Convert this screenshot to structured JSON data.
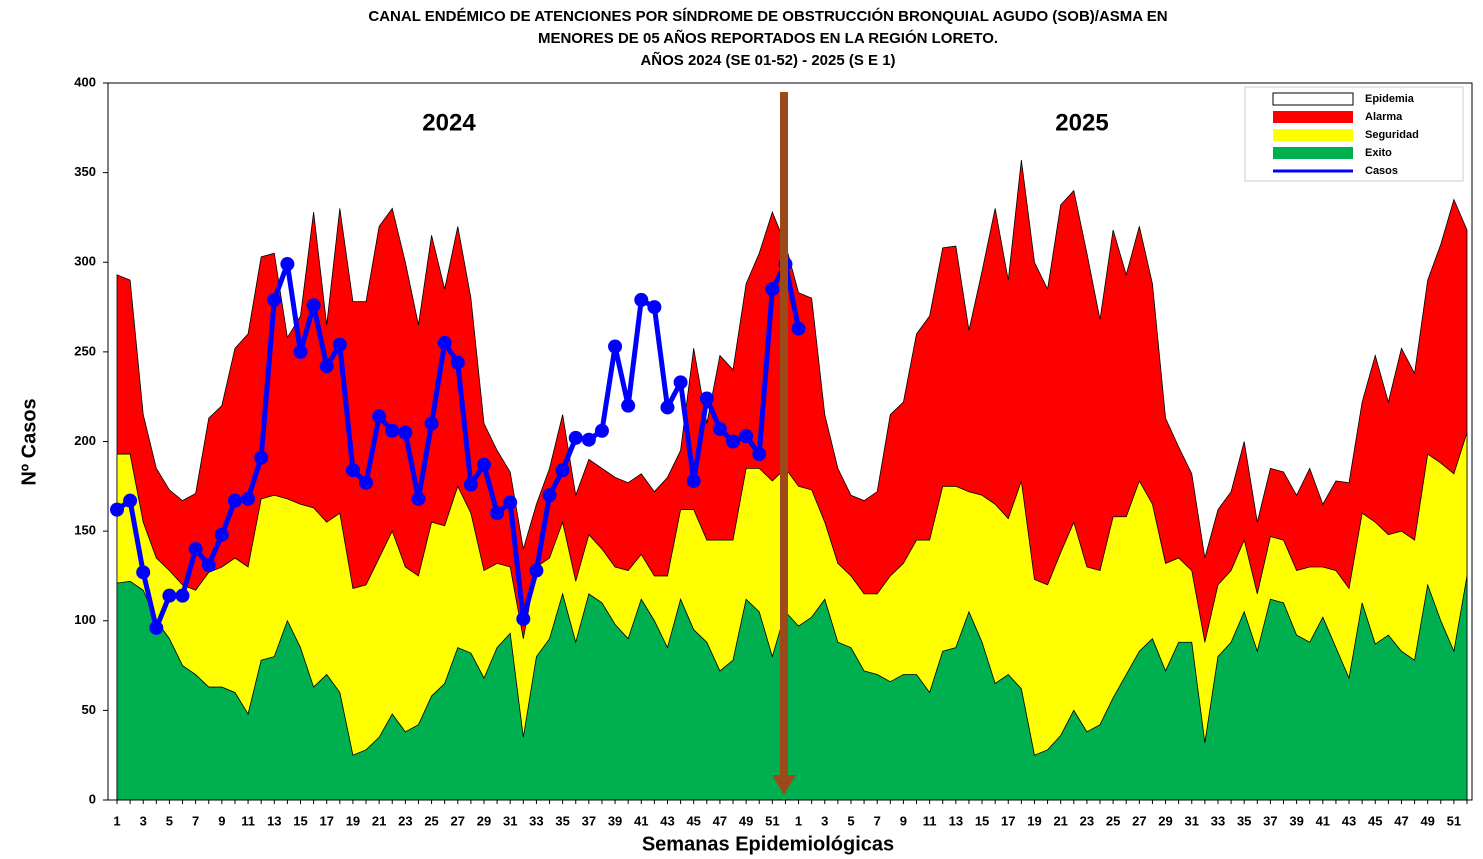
{
  "chart_data": {
    "type": "area",
    "title": [
      "CANAL ENDÉMICO DE ATENCIONES POR SÍNDROME DE OBSTRUCCIÓN BRONQUIAL AGUDO (SOB)/ASMA EN",
      "MENORES DE 05 AÑOS REPORTADOS EN LA REGIÓN LORETO.",
      "AÑOS 2024  (SE 01-52) - 2025 (S E 1)"
    ],
    "x_label": "Semanas Epidemiológicas",
    "y_label": "Nº Casos",
    "annotations": [
      "2024",
      "2025"
    ],
    "categories": [
      "1",
      null,
      "3",
      null,
      "5",
      null,
      "7",
      null,
      "9",
      null,
      "11",
      null,
      "13",
      null,
      "15",
      null,
      "17",
      null,
      "19",
      null,
      "21",
      null,
      "23",
      null,
      "25",
      null,
      "27",
      null,
      "29",
      null,
      "31",
      null,
      "33",
      null,
      "35",
      null,
      "37",
      null,
      "39",
      null,
      "41",
      null,
      "43",
      null,
      "45",
      null,
      "47",
      null,
      "49",
      null,
      "51",
      null,
      "1",
      null,
      "3",
      null,
      "5",
      null,
      "7",
      null,
      "9",
      null,
      "11",
      null,
      "13",
      null,
      "15",
      null,
      "17",
      null,
      "19",
      null,
      "21",
      null,
      "23",
      null,
      "25",
      null,
      "27",
      null,
      "29",
      null,
      "31",
      null,
      "33",
      null,
      "35",
      null,
      "37",
      null,
      "39",
      null,
      "41",
      null,
      "43",
      null,
      "45",
      null,
      "47",
      null,
      "49",
      null,
      "51",
      null
    ],
    "series": [
      {
        "name": "Epidemia",
        "color": "#ffffff"
      },
      {
        "name": "Alarma",
        "color": "#ff0000",
        "values": [
          293,
          290,
          215,
          185,
          173,
          167,
          171,
          213,
          220,
          252,
          260,
          303,
          305,
          258,
          270,
          328,
          265,
          330,
          278,
          278,
          320,
          330,
          300,
          265,
          315,
          285,
          320,
          280,
          210,
          195,
          183,
          140,
          165,
          185,
          215,
          170,
          190,
          185,
          180,
          177,
          182,
          172,
          180,
          195,
          252,
          210,
          248,
          240,
          288,
          305,
          328,
          310,
          283,
          280,
          215,
          185,
          170,
          167,
          172,
          215,
          222,
          260,
          270,
          308,
          309,
          262,
          295,
          330,
          290,
          357,
          300,
          285,
          332,
          340,
          305,
          268,
          318,
          293,
          320,
          288,
          213,
          197,
          182,
          135,
          162,
          172,
          200,
          155,
          185,
          183,
          170,
          185,
          165,
          178,
          177,
          222,
          248,
          222,
          252,
          238,
          290,
          310,
          335,
          318
        ]
      },
      {
        "name": "Seguridad",
        "color": "#ffff00",
        "values": [
          193,
          193,
          155,
          135,
          128,
          120,
          117,
          127,
          130,
          135,
          130,
          168,
          170,
          168,
          165,
          163,
          155,
          160,
          118,
          120,
          135,
          150,
          130,
          125,
          155,
          153,
          175,
          160,
          128,
          132,
          130,
          90,
          130,
          135,
          155,
          122,
          148,
          140,
          130,
          128,
          137,
          125,
          125,
          162,
          162,
          145,
          145,
          145,
          185,
          185,
          178,
          185,
          175,
          173,
          155,
          132,
          125,
          115,
          115,
          125,
          132,
          145,
          145,
          175,
          175,
          172,
          170,
          165,
          157,
          178,
          123,
          120,
          138,
          155,
          130,
          128,
          158,
          158,
          178,
          165,
          132,
          135,
          128,
          88,
          120,
          128,
          145,
          115,
          147,
          145,
          128,
          130,
          130,
          128,
          118,
          160,
          155,
          148,
          150,
          145,
          193,
          188,
          182,
          205
        ]
      },
      {
        "name": "Exito",
        "color": "#00b050",
        "values": [
          121,
          122,
          117,
          100,
          90,
          75,
          70,
          63,
          63,
          60,
          48,
          78,
          80,
          100,
          85,
          63,
          70,
          60,
          25,
          28,
          35,
          48,
          38,
          42,
          58,
          65,
          85,
          82,
          68,
          85,
          93,
          35,
          80,
          90,
          115,
          88,
          115,
          110,
          98,
          90,
          112,
          100,
          85,
          112,
          95,
          88,
          72,
          78,
          112,
          105,
          80,
          105,
          97,
          102,
          112,
          88,
          85,
          72,
          70,
          66,
          70,
          70,
          60,
          83,
          85,
          105,
          88,
          65,
          70,
          62,
          25,
          28,
          36,
          50,
          38,
          42,
          57,
          70,
          83,
          90,
          72,
          88,
          88,
          32,
          80,
          88,
          105,
          83,
          112,
          110,
          92,
          88,
          102,
          85,
          68,
          110,
          87,
          92,
          83,
          78,
          120,
          100,
          83,
          125
        ]
      },
      {
        "name": "Casos",
        "color": "#0000ff",
        "values": [
          162,
          167,
          127,
          96,
          114,
          114,
          140,
          131,
          148,
          167,
          168,
          191,
          279,
          299,
          250,
          276,
          242,
          254,
          184,
          177,
          214,
          206,
          205,
          168,
          210,
          255,
          244,
          176,
          187,
          160,
          166,
          101,
          128,
          170,
          184,
          202,
          201,
          206,
          253,
          220,
          279,
          275,
          219,
          233,
          178,
          224,
          207,
          200,
          203,
          193,
          285,
          299,
          263,
          null,
          null,
          null,
          null,
          null,
          null,
          null,
          null,
          null,
          null,
          null,
          null,
          null,
          null,
          null,
          null,
          null,
          null,
          null,
          null,
          null,
          null,
          null,
          null,
          null,
          null,
          null,
          null,
          null,
          null,
          null,
          null,
          null,
          null,
          null,
          null,
          null,
          null,
          null,
          null,
          null,
          null,
          null,
          null,
          null,
          null,
          null,
          null,
          null,
          null,
          null
        ]
      }
    ],
    "ylim": [
      0,
      400
    ],
    "yticks": [
      0,
      50,
      100,
      150,
      200,
      250,
      300,
      350,
      400
    ],
    "grid": false,
    "legend": "upper right"
  }
}
